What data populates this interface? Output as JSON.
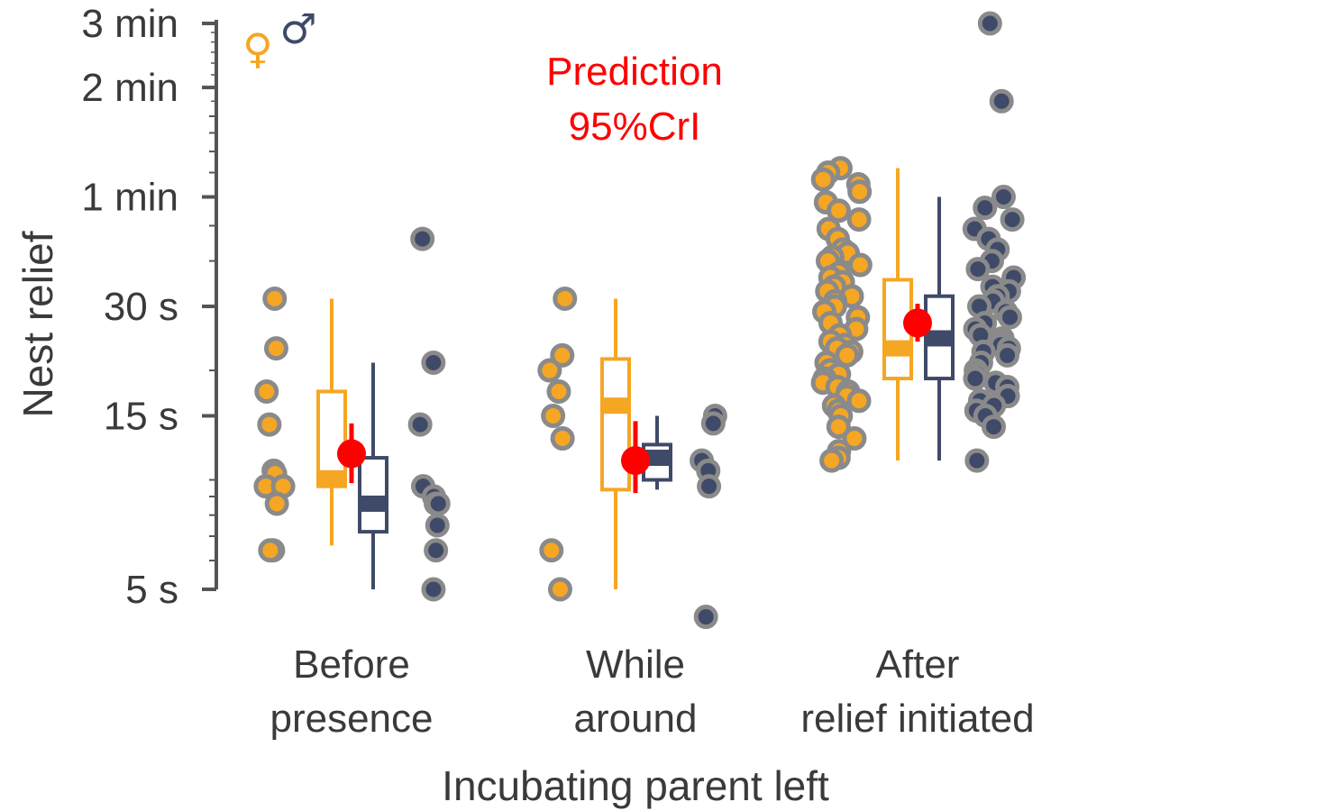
{
  "chart_data": {
    "type": "scatter",
    "y_scale": "log",
    "ylabel": "Nest relief",
    "xlabel": "Incubating parent left",
    "y_ticks": [
      {
        "value": 5,
        "label": "5 s"
      },
      {
        "value": 15,
        "label": "15 s"
      },
      {
        "value": 30,
        "label": "30 s"
      },
      {
        "value": 60,
        "label": "1 min"
      },
      {
        "value": 120,
        "label": "2 min"
      },
      {
        "value": 180,
        "label": "3 min"
      }
    ],
    "ylim": [
      5,
      180
    ],
    "categories": [
      {
        "key": "before",
        "lines": [
          "Before",
          "presence"
        ]
      },
      {
        "key": "while",
        "lines": [
          "While",
          "around"
        ]
      },
      {
        "key": "after",
        "lines": [
          "After",
          "relief initiated"
        ]
      }
    ],
    "legend": {
      "female_symbol": "♀",
      "male_symbol": "♂",
      "placement": "top-left"
    },
    "annotation": {
      "lines": [
        "Prediction",
        "95%CrI"
      ],
      "color": "#ff0000"
    },
    "colors": {
      "female": "#f5a623",
      "male": "#3f4a68",
      "point_edge": "#8a8a8a",
      "prediction": "#ff0000",
      "axis": "#555555"
    },
    "series": [
      {
        "name": "♀",
        "sex": "female",
        "points": {
          "before": [
            31.5,
            23,
            17.5,
            14.2,
            10.6,
            10.4,
            9.6,
            9.6,
            8.6,
            6.4,
            6.4
          ],
          "while": [
            31.5,
            22,
            20,
            17.5,
            15,
            13,
            6.4,
            5
          ],
          "after": [
            72,
            70,
            67,
            65,
            62,
            58,
            55,
            52,
            49,
            46,
            43,
            42,
            41,
            40,
            39,
            37,
            36,
            35,
            34,
            33,
            32,
            31,
            30,
            29,
            28,
            27,
            26,
            25,
            24,
            23.5,
            23,
            22.5,
            22,
            21,
            20,
            19.5,
            19,
            18.5,
            18,
            17.5,
            17,
            16.5,
            16,
            15.5,
            15,
            14,
            13,
            12,
            11.5,
            11.3
          ]
        },
        "box": {
          "before": {
            "whisker_low": 6.6,
            "q1": 9.6,
            "median": 10.1,
            "q3": 17.5,
            "whisker_high": 31.5
          },
          "while": {
            "whisker_low": 5,
            "q1": 9.4,
            "median": 16,
            "q3": 21.5,
            "whisker_high": 31.5
          },
          "after": {
            "whisker_low": 11.3,
            "q1": 19,
            "median": 23,
            "q3": 35.5,
            "whisker_high": 72
          }
        }
      },
      {
        "name": "♂",
        "sex": "male",
        "points": {
          "before": [
            46,
            21,
            14.2,
            9.6,
            9,
            8.6,
            8.6,
            7.5,
            6.4,
            5
          ],
          "while": [
            15,
            14.3,
            11.3,
            10.6,
            9.6,
            4.2
          ],
          "after": [
            180,
            110,
            60,
            56,
            52,
            49,
            46,
            43,
            40,
            38,
            36,
            34,
            33,
            32,
            31,
            30,
            29,
            28,
            27,
            26,
            25,
            24.5,
            24,
            23.5,
            23,
            22.5,
            22,
            21,
            20,
            19.5,
            19,
            18.5,
            18,
            17,
            16.5,
            16,
            15.5,
            15,
            14,
            11.3
          ]
        },
        "box": {
          "before": {
            "whisker_low": 5,
            "q1": 7.2,
            "median": 8.6,
            "q3": 11.5,
            "whisker_high": 21
          },
          "while": {
            "whisker_low": 9.4,
            "q1": 10,
            "median": 11.5,
            "q3": 12.5,
            "whisker_high": 15
          },
          "after": {
            "whisker_low": 11.3,
            "q1": 19,
            "median": 24.5,
            "q3": 32,
            "whisker_high": 60
          }
        }
      }
    ],
    "predictions": [
      {
        "category": "before",
        "estimate": 11.8,
        "ci_low": 9.8,
        "ci_high": 14.3
      },
      {
        "category": "while",
        "estimate": 11.3,
        "ci_low": 9.2,
        "ci_high": 14.5
      },
      {
        "category": "after",
        "estimate": 27,
        "ci_low": 24,
        "ci_high": 30.5
      }
    ]
  }
}
